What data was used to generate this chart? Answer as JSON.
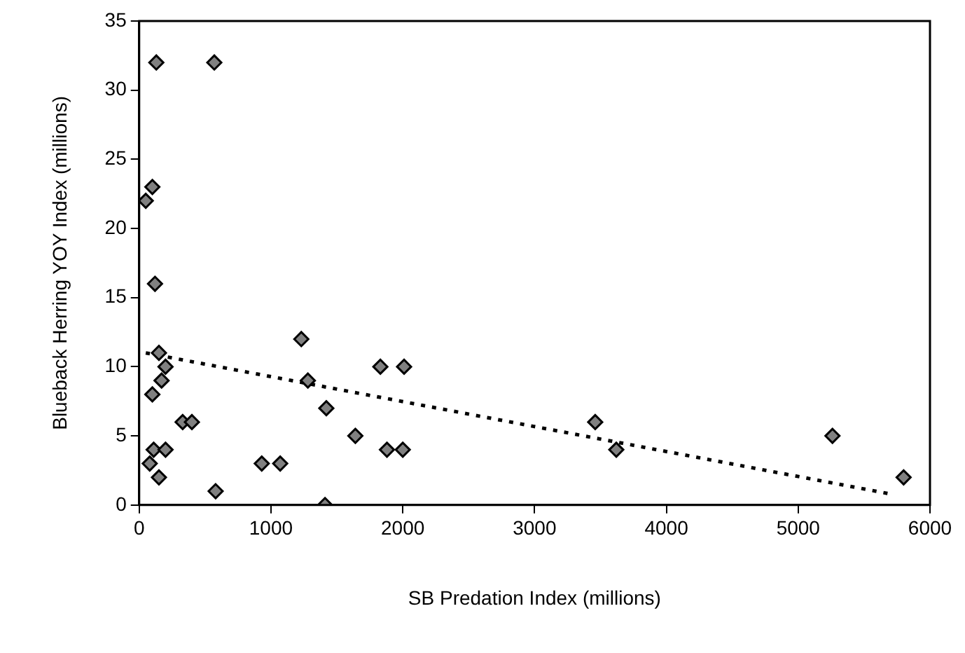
{
  "chart_data": {
    "type": "scatter",
    "xlabel": "SB Predation Index (millions)",
    "ylabel": "Blueback Herring YOY Index (millions)",
    "xlim": [
      0,
      6000
    ],
    "xticks": [
      0,
      1000,
      2000,
      3000,
      4000,
      5000,
      6000
    ],
    "ylim": [
      0,
      35
    ],
    "yticks": [
      0,
      5,
      10,
      15,
      20,
      25,
      30,
      35
    ],
    "grid": false,
    "legend": false,
    "marker": "diamond",
    "series": [
      {
        "color": "#808080",
        "x": [
          50,
          100,
          130,
          120,
          150,
          200,
          170,
          100,
          110,
          80,
          200,
          150,
          330,
          400,
          570,
          580,
          930,
          1070,
          1230,
          1280,
          1420,
          1410,
          1640,
          1830,
          1880,
          2000,
          2010,
          3460,
          3620,
          5260,
          5800
        ],
        "values": [
          22,
          23,
          32,
          16,
          11,
          10,
          9,
          8,
          4,
          3,
          4,
          2,
          6,
          6,
          32,
          1,
          3,
          3,
          12,
          9,
          7,
          0,
          5,
          10,
          4,
          4,
          10,
          6,
          4,
          5,
          2
        ]
      },
      {
        "type": "line",
        "color": "#000000",
        "marker": "none",
        "line_style": "dotted",
        "x": [
          50,
          5700
        ],
        "values": [
          11,
          0.8
        ]
      }
    ]
  }
}
